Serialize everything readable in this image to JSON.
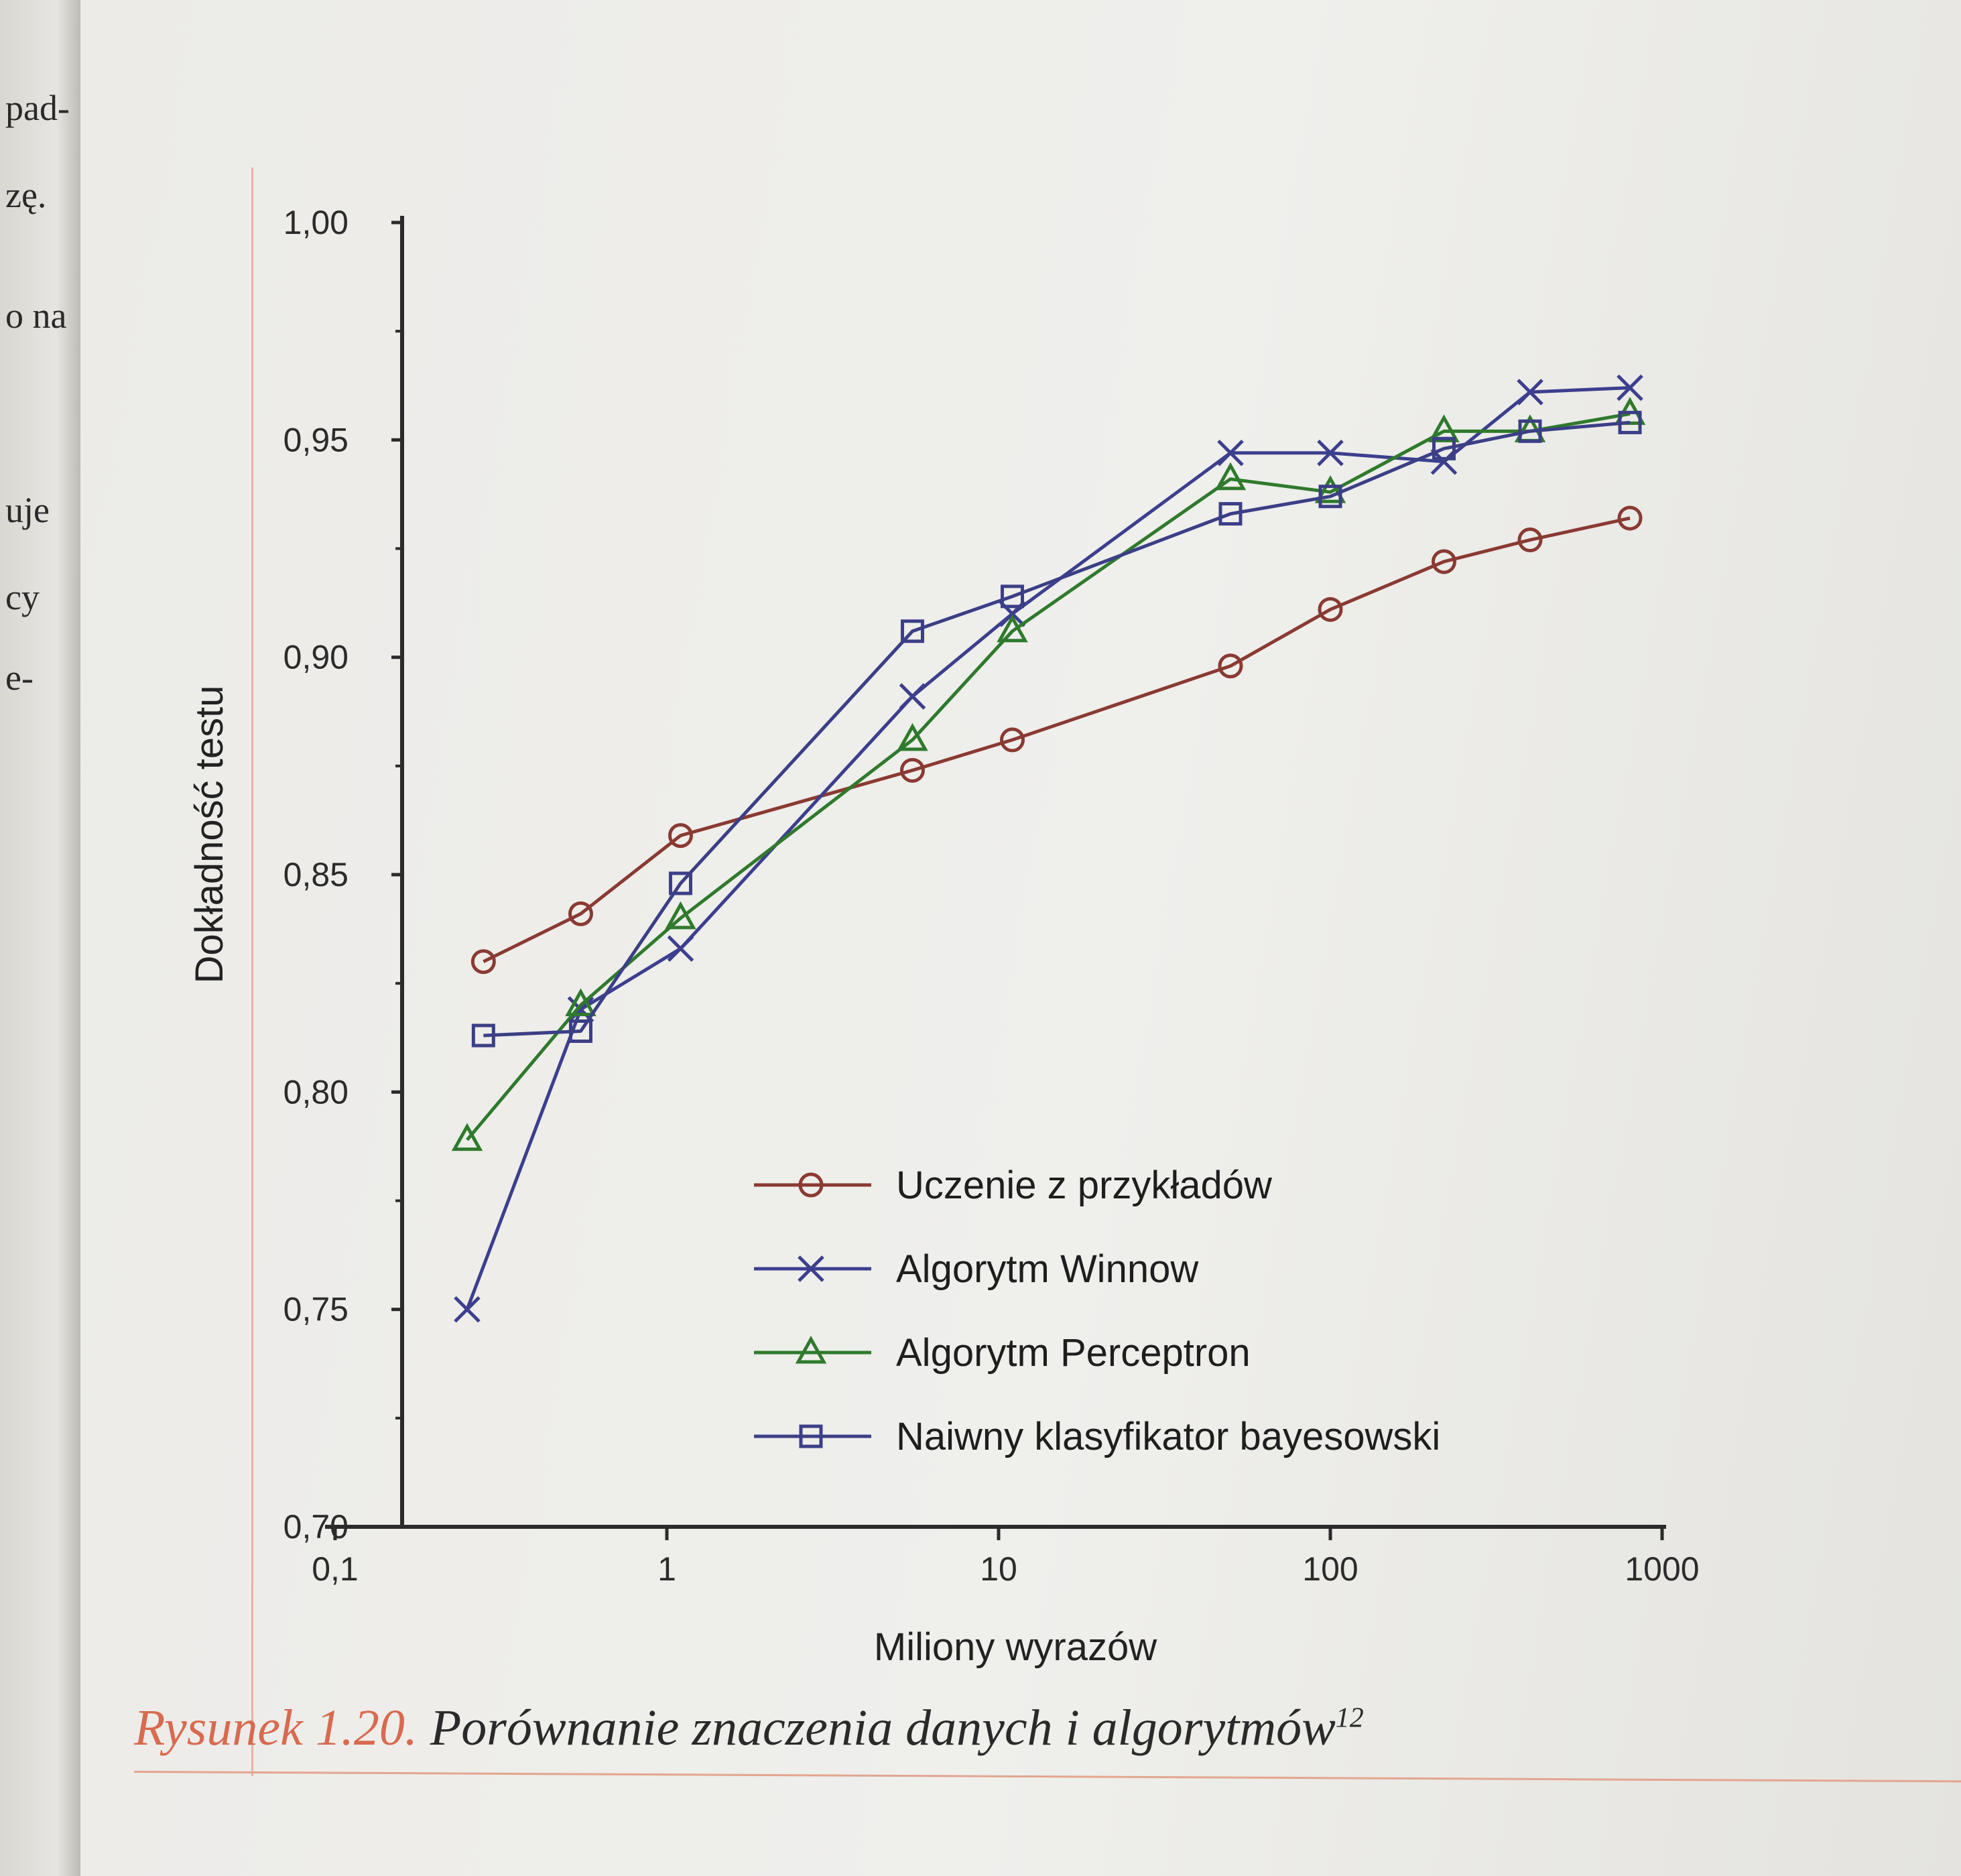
{
  "left_page_fragments": [
    "pad-",
    "zę.",
    "o na",
    "uje",
    "cy",
    "e-"
  ],
  "caption": {
    "label": "Rysunek 1.20.",
    "text": " Porównanie znaczenia danych i algorytmów",
    "superscript": "12"
  },
  "colors": {
    "uczenie": "#8a3a32",
    "winnow": "#3c3f8e",
    "perceptron": "#2f7a2c",
    "bayes": "#3b3f86",
    "caption_label": "#d86a4e"
  },
  "chart_data": {
    "type": "line",
    "xscale": "log",
    "xlabel": "Miliony wyrazów",
    "ylabel": "Dokładność testu",
    "xlim": [
      0.1,
      1000
    ],
    "ylim": [
      0.7,
      1.0
    ],
    "xticks": [
      "0,1",
      "1",
      "10",
      "100",
      "1000"
    ],
    "yticks": [
      "0,70",
      "0,75",
      "0,80",
      "0,85",
      "0,90",
      "0,95",
      "1,00"
    ],
    "legend_position": "lower-right",
    "series": [
      {
        "name": "Uczenie z przykładów",
        "marker": "circle",
        "x": [
          0.28,
          0.55,
          1.1,
          5.5,
          11,
          50,
          100,
          220,
          400,
          800
        ],
        "y": [
          0.83,
          0.841,
          0.859,
          0.874,
          0.881,
          0.898,
          0.911,
          0.922,
          0.927,
          0.932
        ]
      },
      {
        "name": "Algorytm Winnow",
        "marker": "x",
        "x": [
          0.25,
          0.55,
          1.1,
          5.5,
          11,
          50,
          100,
          220,
          400,
          800
        ],
        "y": [
          0.75,
          0.819,
          0.833,
          0.891,
          0.91,
          0.947,
          0.947,
          0.945,
          0.961,
          0.962
        ]
      },
      {
        "name": "Algorytm Perceptron",
        "marker": "triangle",
        "x": [
          0.25,
          0.55,
          1.1,
          5.5,
          11,
          50,
          100,
          220,
          400,
          800
        ],
        "y": [
          0.789,
          0.82,
          0.84,
          0.881,
          0.906,
          0.941,
          0.938,
          0.952,
          0.952,
          0.956
        ]
      },
      {
        "name": "Naiwny klasyfikator bayesowski",
        "marker": "square",
        "x": [
          0.28,
          0.55,
          1.1,
          5.5,
          11,
          50,
          100,
          220,
          400,
          800
        ],
        "y": [
          0.813,
          0.814,
          0.848,
          0.906,
          0.914,
          0.933,
          0.937,
          0.948,
          0.952,
          0.954
        ]
      }
    ]
  }
}
